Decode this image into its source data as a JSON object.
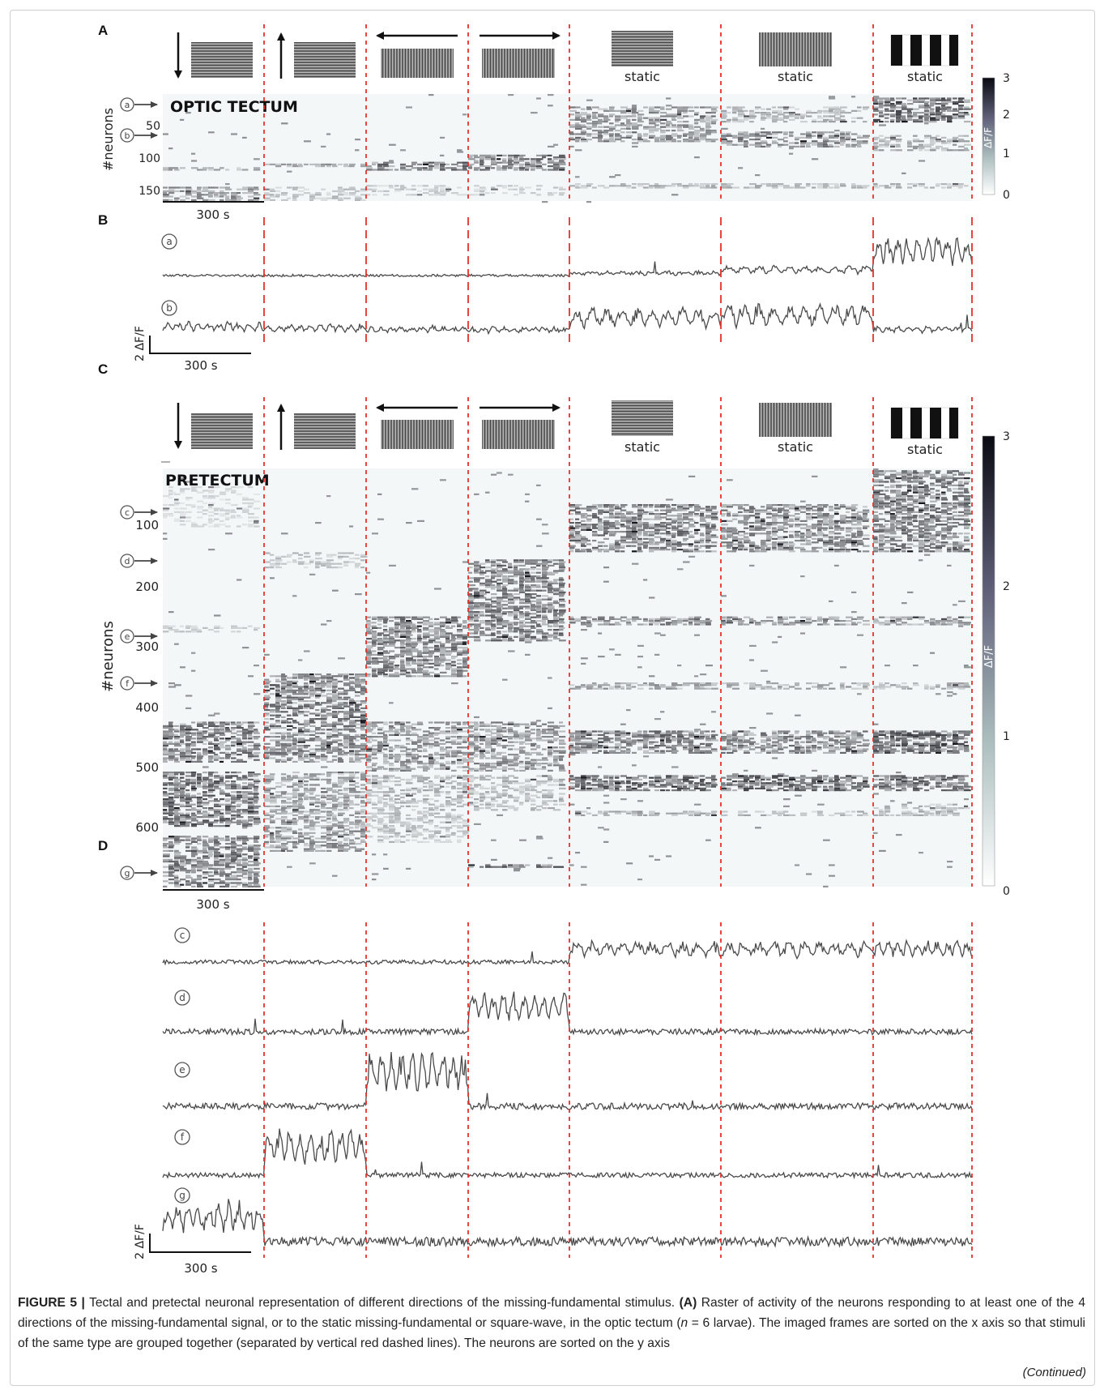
{
  "figure": {
    "panel_labels": {
      "a": "A",
      "b": "B",
      "c": "C",
      "d": "D"
    },
    "stimulus_labels": {
      "static": "static"
    },
    "panelA": {
      "region_label": "OPTIC TECTUM",
      "y_axis_label": "#neurons",
      "y_ticks": [
        "50",
        "100",
        "150"
      ],
      "neuron_markers": [
        "a",
        "b"
      ],
      "colorbar_ticks": [
        "3",
        "2",
        "1",
        "0"
      ],
      "colorbar_label": "ΔF/F",
      "scale_bar": "300 s"
    },
    "panelB": {
      "trace_labels": [
        "a",
        "b"
      ],
      "scale_y": "2 ΔF/F",
      "scale_x": "300 s"
    },
    "panelC": {
      "region_label": "PRETECTUM",
      "y_axis_label": "#neurons",
      "y_ticks": [
        "100",
        "200",
        "300",
        "400",
        "500",
        "600"
      ],
      "neuron_markers": [
        "c",
        "d",
        "e",
        "f",
        "g"
      ],
      "colorbar_ticks": [
        "3",
        "2",
        "1",
        "0"
      ],
      "colorbar_label": "ΔF/F",
      "scale_bar": "300 s"
    },
    "panelD": {
      "trace_labels": [
        "c",
        "d",
        "e",
        "f",
        "g"
      ],
      "scale_y": "2 ΔF/F",
      "scale_x": "300 s"
    }
  },
  "caption": {
    "figure_label": "FIGURE 5 |",
    "title": "Tectal and pretectal neuronal representation of different directions of the missing-fundamental stimulus.",
    "panel_ref": "(A)",
    "text_1": "Raster of activity of the neurons responding to at least one of the 4 directions of the missing-fundamental signal, or to the static missing-fundamental or square-wave, in the optic tectum (",
    "n_italic": "n",
    "text_2": " = 6 larvae). The imaged frames are sorted on the x axis so that stimuli of the same type are grouped together (separated by vertical red dashed lines). The neurons are sorted on the y axis",
    "continued": "(Continued)"
  },
  "colors": {
    "divider": "#e8302a",
    "trace": "#4a4a4a",
    "raster_low": "#f4f8f8",
    "raster_high": "#151520"
  }
}
